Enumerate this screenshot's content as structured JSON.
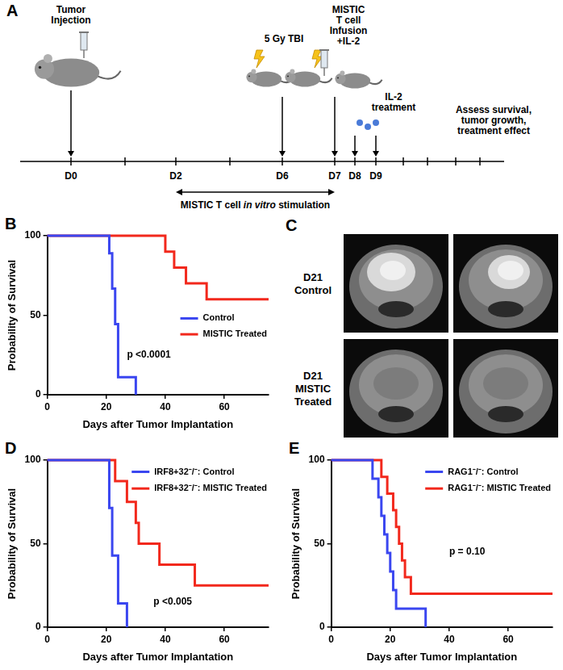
{
  "panels": {
    "A": {
      "panel": "A",
      "days": [
        "D0",
        "D2",
        "D6",
        "D7",
        "D8",
        "D9"
      ],
      "events": [
        {
          "days": [
            "D0"
          ],
          "text": [
            "Tumor",
            "Injection"
          ]
        },
        {
          "days": [
            "D6"
          ],
          "text": [
            "5 Gy TBI"
          ]
        },
        {
          "days": [
            "D7"
          ],
          "text": [
            "MISTIC",
            "T cell",
            "Infusion",
            "+IL-2"
          ]
        },
        {
          "days": [
            "D8",
            "D9"
          ],
          "text": [
            "IL-2",
            "treatment"
          ]
        },
        {
          "days": [],
          "text": [
            "Assess survival,",
            "tumor growth,",
            "treatment effect"
          ]
        }
      ],
      "interval": {
        "from": "D2",
        "to": "D7",
        "text": "MISTIC T cell in vitro stimulation",
        "italic": "in vitro"
      }
    },
    "C": {
      "panel": "C",
      "rows": [
        {
          "label": [
            "D21",
            "Control"
          ]
        },
        {
          "label": [
            "D21",
            "MISTIC",
            "Treated"
          ]
        }
      ]
    }
  },
  "chart_data": [
    {
      "panel": "B",
      "type": "line",
      "x_label": "Days after Tumor Implantation",
      "y_label": "Probability of Survival",
      "annotation": "p <0.0001",
      "xlim": [
        0,
        75
      ],
      "xticks": [
        0,
        20,
        40,
        60
      ],
      "ylim": [
        0,
        100
      ],
      "yticks": [
        0,
        50,
        100
      ],
      "grid": false,
      "series": [
        {
          "name": "Control",
          "color": "#3a46f0",
          "x": [
            0,
            21,
            22,
            23,
            24,
            30
          ],
          "values": [
            100,
            88.9,
            66.7,
            44.4,
            11.1,
            0
          ]
        },
        {
          "name": "MISTIC Treated",
          "color": "#f2281c",
          "x": [
            0,
            40,
            43,
            47,
            54,
            75
          ],
          "values": [
            100,
            90,
            80,
            70,
            60,
            60
          ]
        }
      ]
    },
    {
      "panel": "D",
      "type": "line",
      "x_label": "Days after Tumor Implantation",
      "y_label": "Probability of Survival",
      "annotation": "p <0.005",
      "xlim": [
        0,
        75
      ],
      "xticks": [
        0,
        20,
        40,
        60
      ],
      "ylim": [
        0,
        100
      ],
      "yticks": [
        0,
        50,
        100
      ],
      "grid": false,
      "series": [
        {
          "name": "IRF8+32⁻/⁻: Control",
          "color": "#3a46f0",
          "x": [
            0,
            21,
            22,
            24,
            27
          ],
          "values": [
            100,
            71.4,
            42.9,
            14.3,
            0
          ]
        },
        {
          "name": "IRF8+32⁻/⁻: MISTIC Treated",
          "color": "#f2281c",
          "x": [
            0,
            23,
            27,
            30,
            31,
            38,
            50,
            75
          ],
          "values": [
            100,
            87.5,
            75,
            62.5,
            50,
            37.5,
            25,
            25
          ]
        }
      ]
    },
    {
      "panel": "E",
      "type": "line",
      "x_label": "Days after Tumor Implantation",
      "y_label": "Probability of Survival",
      "annotation": "p = 0.10",
      "xlim": [
        0,
        75
      ],
      "xticks": [
        0,
        20,
        40,
        60
      ],
      "ylim": [
        0,
        100
      ],
      "yticks": [
        0,
        50,
        100
      ],
      "grid": false,
      "series": [
        {
          "name": "RAG1⁻/⁻: Control",
          "color": "#3a46f0",
          "x": [
            0,
            14,
            16,
            17,
            18,
            19,
            20,
            21,
            22,
            32
          ],
          "values": [
            100,
            88.9,
            77.8,
            66.7,
            55.6,
            44.4,
            33.3,
            22.2,
            11.1,
            0
          ]
        },
        {
          "name": "RAG1⁻/⁻: MISTIC Treated",
          "color": "#f2281c",
          "x": [
            0,
            17,
            19,
            21,
            22,
            23,
            24,
            25,
            27,
            75
          ],
          "values": [
            100,
            90,
            80,
            70,
            60,
            50,
            40,
            30,
            20,
            20
          ]
        }
      ]
    }
  ]
}
